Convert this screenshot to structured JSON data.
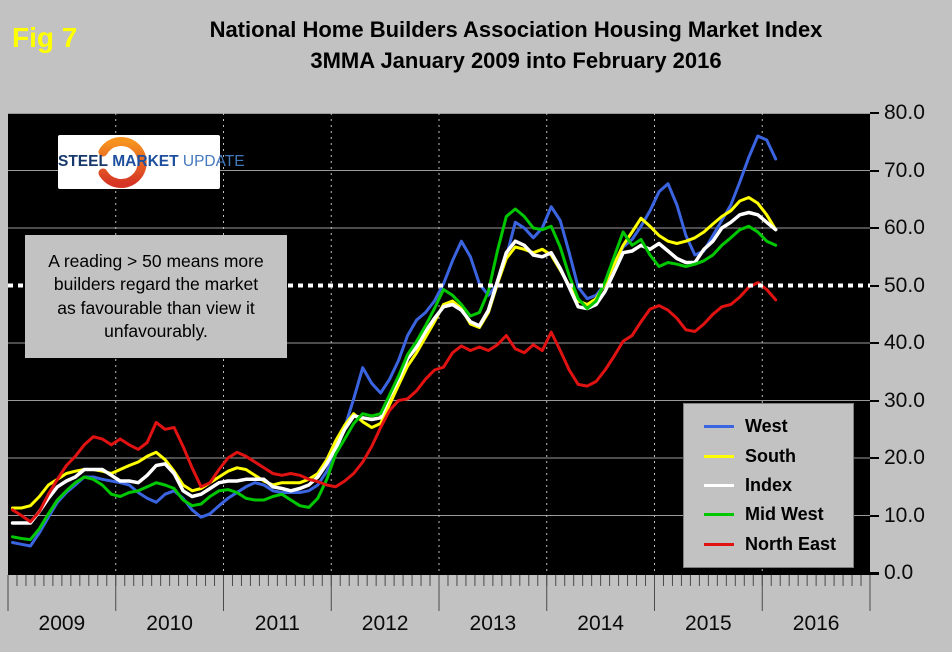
{
  "fig_label": "Fig 7",
  "title": {
    "line1": "National Home Builders Association Housing Market Index",
    "line2": "3MMA January 2009 into February 2016"
  },
  "logo": {
    "word1": "STEEL",
    "word2": "MARKET",
    "word3": "UPDATE"
  },
  "annotation": "A reading > 50 means more builders regard the market as favourable than view it unfavourably.",
  "colors": {
    "page_bg": "#c2c2c2",
    "plot_bg": "#000000",
    "grid": "#9a9a9a",
    "year_grid": "#bdbdbd",
    "reference_line": "#ffffff",
    "fig_label": "#ffff00",
    "axis_text": "#0a0a0a"
  },
  "chart_data": {
    "type": "line",
    "title": "National Home Builders Association Housing Market Index",
    "subtitle": "3MMA January 2009 into February 2016",
    "x_start": "Jan 2009",
    "x_end": "Feb 2016",
    "x_tick_labels": [
      "2009",
      "2010",
      "2011",
      "2012",
      "2013",
      "2014",
      "2015",
      "2016"
    ],
    "months_per_x_label": 12,
    "x_axis_total_months": 96,
    "y_ticks": [
      0,
      10,
      20,
      30,
      40,
      50,
      60,
      70,
      80
    ],
    "ylim": [
      0,
      80
    ],
    "y_tick_format": "one-decimal",
    "grid": true,
    "legend_position": "lower-right",
    "reference_line": {
      "value": 50,
      "color": "#ffffff",
      "style": "dotted"
    },
    "series": [
      {
        "name": "West",
        "color": "#3b64e0",
        "values": [
          5.3,
          5.0,
          4.7,
          7.0,
          9.7,
          12.3,
          14.0,
          15.3,
          16.7,
          16.7,
          16.3,
          16.0,
          15.7,
          15.3,
          14.0,
          13.0,
          12.3,
          13.7,
          14.3,
          13.0,
          11.0,
          9.7,
          10.3,
          11.7,
          13.0,
          14.0,
          15.0,
          15.7,
          15.3,
          14.3,
          14.0,
          14.0,
          14.0,
          14.3,
          15.3,
          17.7,
          21.0,
          25.3,
          30.3,
          35.7,
          33.0,
          31.3,
          33.7,
          37.0,
          41.3,
          44.0,
          45.3,
          47.3,
          50.3,
          54.3,
          57.7,
          55.0,
          50.3,
          48.3,
          50.3,
          55.0,
          61.0,
          60.0,
          58.3,
          60.0,
          63.7,
          61.3,
          55.7,
          49.7,
          47.7,
          48.3,
          50.3,
          53.7,
          56.7,
          58.0,
          60.3,
          63.0,
          66.3,
          67.7,
          64.0,
          58.7,
          55.3,
          56.0,
          58.7,
          61.3,
          64.0,
          68.0,
          72.3,
          76.0,
          75.3,
          72.0
        ]
      },
      {
        "name": "South",
        "color": "#ffff00",
        "values": [
          11.3,
          11.3,
          11.7,
          13.3,
          15.3,
          16.3,
          17.3,
          17.7,
          18.0,
          18.0,
          17.7,
          17.3,
          18.0,
          18.7,
          19.3,
          20.3,
          21.0,
          19.7,
          17.7,
          15.3,
          14.3,
          14.7,
          15.7,
          16.7,
          17.7,
          18.3,
          18.0,
          17.0,
          16.0,
          15.3,
          15.7,
          15.7,
          15.7,
          16.3,
          17.3,
          19.7,
          23.0,
          25.7,
          27.7,
          26.3,
          25.3,
          26.0,
          29.3,
          32.7,
          36.0,
          38.3,
          41.0,
          43.7,
          46.7,
          47.3,
          46.0,
          43.3,
          42.7,
          45.3,
          50.3,
          54.7,
          56.7,
          56.3,
          55.7,
          56.3,
          55.3,
          52.7,
          50.0,
          47.3,
          46.7,
          47.7,
          50.3,
          53.7,
          57.0,
          59.3,
          61.7,
          60.3,
          58.7,
          57.7,
          57.3,
          57.7,
          58.3,
          59.3,
          60.7,
          62.0,
          63.0,
          64.7,
          65.3,
          64.3,
          62.3,
          59.7
        ]
      },
      {
        "name": "Index",
        "color": "#ffffff",
        "values": [
          8.7,
          8.7,
          8.7,
          10.7,
          13.0,
          15.0,
          16.0,
          16.7,
          18.0,
          18.0,
          18.0,
          17.0,
          16.0,
          16.0,
          15.7,
          17.0,
          18.7,
          19.0,
          17.3,
          14.3,
          13.3,
          13.7,
          14.7,
          15.7,
          16.0,
          16.0,
          16.3,
          16.3,
          16.3,
          15.0,
          14.7,
          14.3,
          14.7,
          15.3,
          16.7,
          19.0,
          21.7,
          25.0,
          27.3,
          27.0,
          26.7,
          27.0,
          30.7,
          33.7,
          37.3,
          39.3,
          42.0,
          44.3,
          46.3,
          46.7,
          45.7,
          43.7,
          43.0,
          45.7,
          50.7,
          55.7,
          57.7,
          57.0,
          55.3,
          55.0,
          55.7,
          53.0,
          49.7,
          46.3,
          46.0,
          46.7,
          49.0,
          52.3,
          55.7,
          56.0,
          57.0,
          56.3,
          57.3,
          56.0,
          54.7,
          54.0,
          54.0,
          56.3,
          57.7,
          60.0,
          61.0,
          62.3,
          62.7,
          62.3,
          61.0,
          59.7
        ]
      },
      {
        "name": "Mid West",
        "color": "#00c800",
        "values": [
          6.3,
          6.0,
          5.8,
          7.7,
          10.3,
          12.7,
          14.3,
          15.7,
          16.7,
          16.3,
          15.3,
          13.7,
          13.3,
          14.0,
          14.3,
          15.0,
          15.7,
          15.3,
          14.7,
          12.7,
          11.7,
          12.0,
          13.3,
          14.3,
          14.5,
          14.0,
          13.0,
          12.7,
          12.7,
          13.3,
          13.7,
          12.7,
          11.7,
          11.4,
          13.0,
          16.3,
          20.7,
          23.3,
          26.0,
          27.7,
          27.3,
          27.7,
          31.0,
          34.3,
          38.0,
          40.3,
          43.0,
          46.0,
          49.3,
          48.3,
          46.7,
          44.7,
          45.3,
          49.0,
          56.0,
          62.0,
          63.3,
          62.0,
          60.0,
          59.7,
          60.3,
          56.7,
          51.7,
          47.7,
          46.0,
          47.3,
          50.7,
          55.0,
          59.3,
          57.0,
          58.0,
          55.3,
          53.3,
          54.0,
          53.7,
          53.3,
          53.7,
          54.3,
          55.3,
          57.0,
          58.3,
          59.7,
          60.3,
          59.3,
          57.7,
          57.0
        ]
      },
      {
        "name": "North East",
        "color": "#e01212",
        "values": [
          11.0,
          10.0,
          8.9,
          10.7,
          13.7,
          16.3,
          18.7,
          20.3,
          22.3,
          23.7,
          23.3,
          22.3,
          23.3,
          22.3,
          21.5,
          22.7,
          26.2,
          25.0,
          25.3,
          22.0,
          18.3,
          15.0,
          15.7,
          18.0,
          20.0,
          21.0,
          20.3,
          19.3,
          18.3,
          17.3,
          17.0,
          17.3,
          17.0,
          16.3,
          15.9,
          15.3,
          15.0,
          16.0,
          17.3,
          19.3,
          22.0,
          25.3,
          28.3,
          30.0,
          30.3,
          31.7,
          33.7,
          35.3,
          35.8,
          38.3,
          39.5,
          38.7,
          39.3,
          38.7,
          39.7,
          41.3,
          39.0,
          38.3,
          39.7,
          38.7,
          41.9,
          38.7,
          35.3,
          32.8,
          32.5,
          33.3,
          35.3,
          37.7,
          40.3,
          41.3,
          43.7,
          45.9,
          46.5,
          45.7,
          44.3,
          42.3,
          42.0,
          43.3,
          45.0,
          46.3,
          46.7,
          48.0,
          49.7,
          50.5,
          49.3,
          47.5
        ]
      }
    ]
  }
}
